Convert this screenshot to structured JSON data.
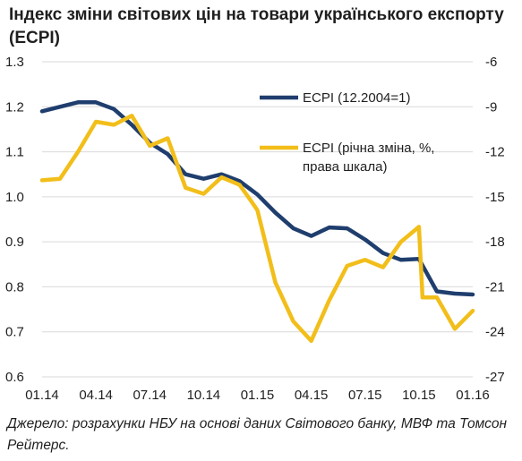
{
  "title": "Індекс зміни світових цін на товари українського експорту (ECPI)",
  "source": "Джерело: розрахунки НБУ на основі даних Світового банку, МВФ та Томсон Рейтерс.",
  "colors": {
    "series1": "#1f3e6e",
    "series2": "#f2be1a",
    "grid": "#d9d9d9"
  },
  "chart_data": {
    "type": "line",
    "categories": [
      "01.14",
      "04.14",
      "07.14",
      "10.14",
      "01.15",
      "04.15",
      "07.15",
      "10.15",
      "01.16"
    ],
    "x_index": [
      0,
      1,
      2,
      3,
      4,
      5,
      6,
      7,
      8,
      9,
      10,
      11,
      12,
      13,
      14,
      15,
      16,
      17,
      18,
      19,
      20,
      21,
      22,
      23,
      24
    ],
    "legend_position": "top-right",
    "grid": true,
    "y_left": {
      "ylim": [
        0.6,
        1.3
      ],
      "ticks": [
        "0.6",
        "0.7",
        "0.8",
        "0.9",
        "1.0",
        "1.1",
        "1.2",
        "1.3"
      ]
    },
    "y_right": {
      "ylim": [
        -27,
        -6
      ],
      "ticks": [
        "-27",
        "-24",
        "-21",
        "-18",
        "-15",
        "-12",
        "-9",
        "-6"
      ]
    },
    "series": [
      {
        "name": "ECPI (12.2004=1)",
        "axis": "left",
        "x": [
          0,
          1,
          2,
          3,
          4,
          5,
          6,
          7,
          8,
          9,
          10,
          11,
          12,
          13,
          14,
          15,
          16,
          17,
          18,
          19,
          20,
          21,
          22,
          23,
          24
        ],
        "values": [
          1.19,
          1.2,
          1.21,
          1.21,
          1.195,
          1.16,
          1.12,
          1.095,
          1.05,
          1.04,
          1.05,
          1.035,
          1.005,
          0.965,
          0.93,
          0.913,
          0.932,
          0.93,
          0.905,
          0.875,
          0.86,
          0.862,
          0.79,
          0.785,
          0.783
        ]
      },
      {
        "name": "ECPI (річна зміна, %, права шкала)",
        "axis": "right",
        "x": [
          0,
          1,
          2,
          3,
          4,
          5,
          6,
          7,
          8,
          9,
          10,
          11,
          11.6,
          12,
          13,
          14,
          15,
          16,
          17,
          18,
          19,
          20,
          21,
          21.2,
          22,
          23,
          24
        ],
        "values": [
          -13.9,
          -13.8,
          -12.0,
          -10.0,
          -10.2,
          -9.6,
          -11.6,
          -11.1,
          -14.4,
          -14.8,
          -13.7,
          -14.2,
          -15.2,
          -15.9,
          -20.7,
          -23.3,
          -24.6,
          -21.9,
          -19.6,
          -19.2,
          -19.7,
          -18.0,
          -17.0,
          -21.7,
          -21.7,
          -23.8,
          -22.6
        ]
      }
    ]
  }
}
